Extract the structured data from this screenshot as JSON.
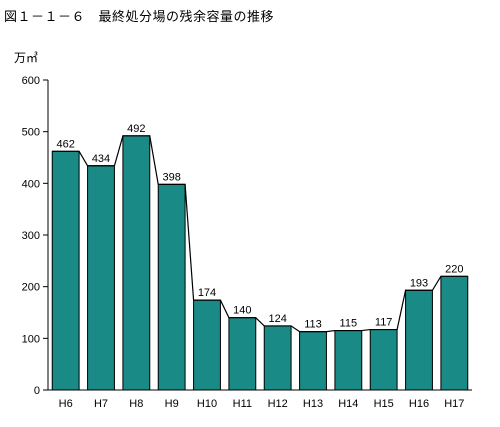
{
  "title": "図１－１－６　最終処分場の残余容量の推移",
  "colors": {
    "bar": "#1a8a86",
    "outline": "#000000"
  },
  "chart_data": {
    "type": "bar",
    "title": "図１－１－６　最終処分場の残余容量の推移",
    "ylabel": "万㎥",
    "xlabel": "",
    "categories": [
      "H6",
      "H7",
      "H8",
      "H9",
      "H10",
      "H11",
      "H12",
      "H13",
      "H14",
      "H15",
      "H16",
      "H17"
    ],
    "values": [
      462,
      434,
      492,
      398,
      174,
      140,
      124,
      113,
      115,
      117,
      193,
      220
    ],
    "ylim": [
      0,
      600
    ],
    "yticks": [
      0,
      100,
      200,
      300,
      400,
      500,
      600
    ],
    "grid": false,
    "connector_line": true,
    "data_labels": true
  }
}
